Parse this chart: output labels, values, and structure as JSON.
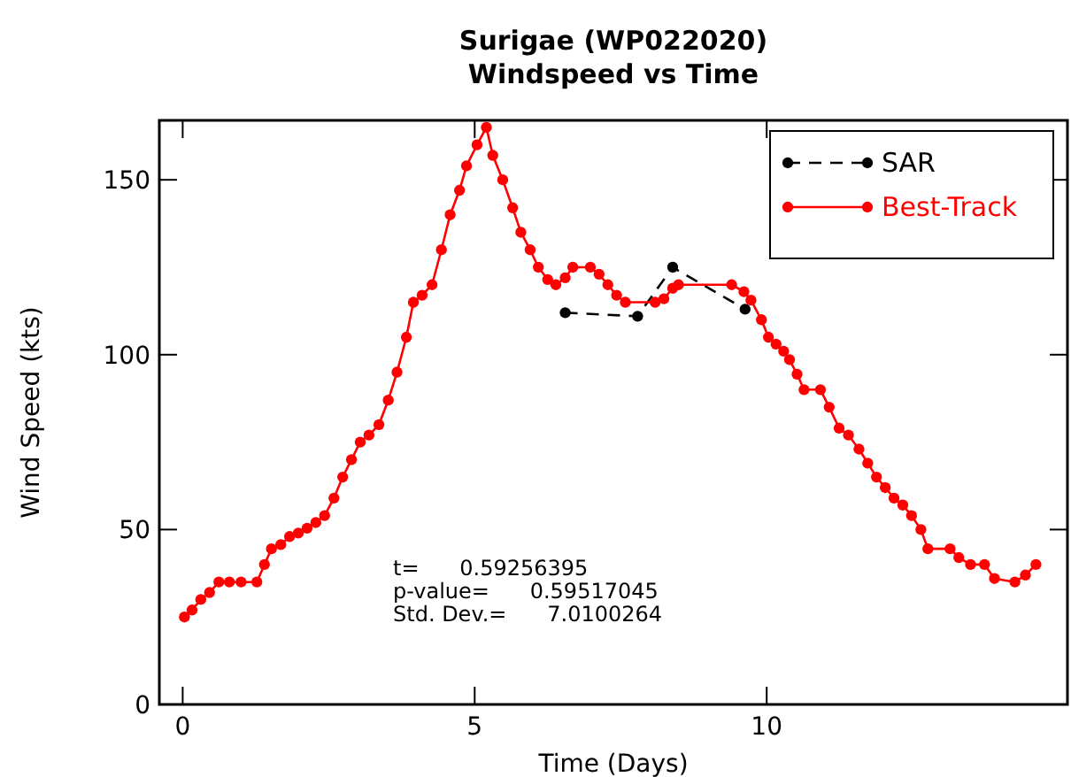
{
  "chart_data": {
    "type": "line",
    "title": "Surigae (WP022020)",
    "subtitle": "Windspeed vs Time",
    "xlabel": "Time (Days)",
    "ylabel": "Wind Speed (kts)",
    "xlim": [
      -0.4,
      15.15
    ],
    "xticks": [
      0,
      5,
      10
    ],
    "ylim": [
      0,
      167
    ],
    "yticks": [
      0,
      50,
      100,
      150
    ],
    "grid": false,
    "legend": "top right",
    "marker": "circle",
    "annotations": [
      "t=      0.59256395",
      "p-value=      0.59517045",
      "Std. Dev.=      7.0100264"
    ],
    "series": [
      {
        "name": "SAR",
        "color": "#000000",
        "line_style": "dashed",
        "x": [
          6.55,
          7.79,
          8.39,
          9.63
        ],
        "values": [
          112,
          111,
          125,
          113
        ]
      },
      {
        "name": "Best-Track",
        "color": "#ff0000",
        "line_style": "solid",
        "x": [
          0.03,
          0.16,
          0.31,
          0.46,
          0.62,
          0.8,
          1.0,
          1.27,
          1.4,
          1.52,
          1.68,
          1.83,
          1.98,
          2.13,
          2.28,
          2.43,
          2.59,
          2.74,
          2.89,
          3.04,
          3.19,
          3.36,
          3.52,
          3.67,
          3.83,
          3.95,
          4.1,
          4.27,
          4.43,
          4.58,
          4.74,
          4.86,
          5.04,
          5.2,
          5.31,
          5.48,
          5.65,
          5.79,
          5.95,
          6.09,
          6.25,
          6.39,
          6.55,
          6.68,
          6.98,
          7.13,
          7.28,
          7.43,
          7.58,
          8.09,
          8.24,
          8.39,
          8.49,
          9.4,
          9.61,
          9.73,
          9.91,
          10.03,
          10.16,
          10.29,
          10.39,
          10.52,
          10.64,
          10.92,
          11.07,
          11.24,
          11.4,
          11.58,
          11.73,
          11.88,
          12.03,
          12.18,
          12.33,
          12.48,
          12.64,
          12.76,
          13.14,
          13.29,
          13.49,
          13.73,
          13.9,
          14.25,
          14.43,
          14.61
        ],
        "values": [
          25,
          27,
          30,
          32,
          35,
          35,
          35,
          35,
          40,
          44.5,
          45.7,
          48,
          49,
          50.4,
          52,
          54,
          59,
          65,
          70,
          75,
          77,
          80,
          87,
          95,
          105,
          115,
          117,
          120,
          130,
          140,
          147,
          154,
          160,
          165,
          157,
          150,
          142,
          135,
          130,
          125,
          121.5,
          120,
          122,
          125,
          125,
          123,
          120,
          117,
          115,
          115,
          116,
          119,
          120,
          120,
          118,
          115.6,
          110,
          105,
          103,
          101,
          98.6,
          94.4,
          90,
          90,
          85,
          79,
          77,
          73,
          69,
          65,
          62,
          59,
          57,
          54,
          50,
          44.5,
          44.5,
          42,
          40,
          40,
          36,
          35,
          37,
          40
        ]
      }
    ]
  }
}
